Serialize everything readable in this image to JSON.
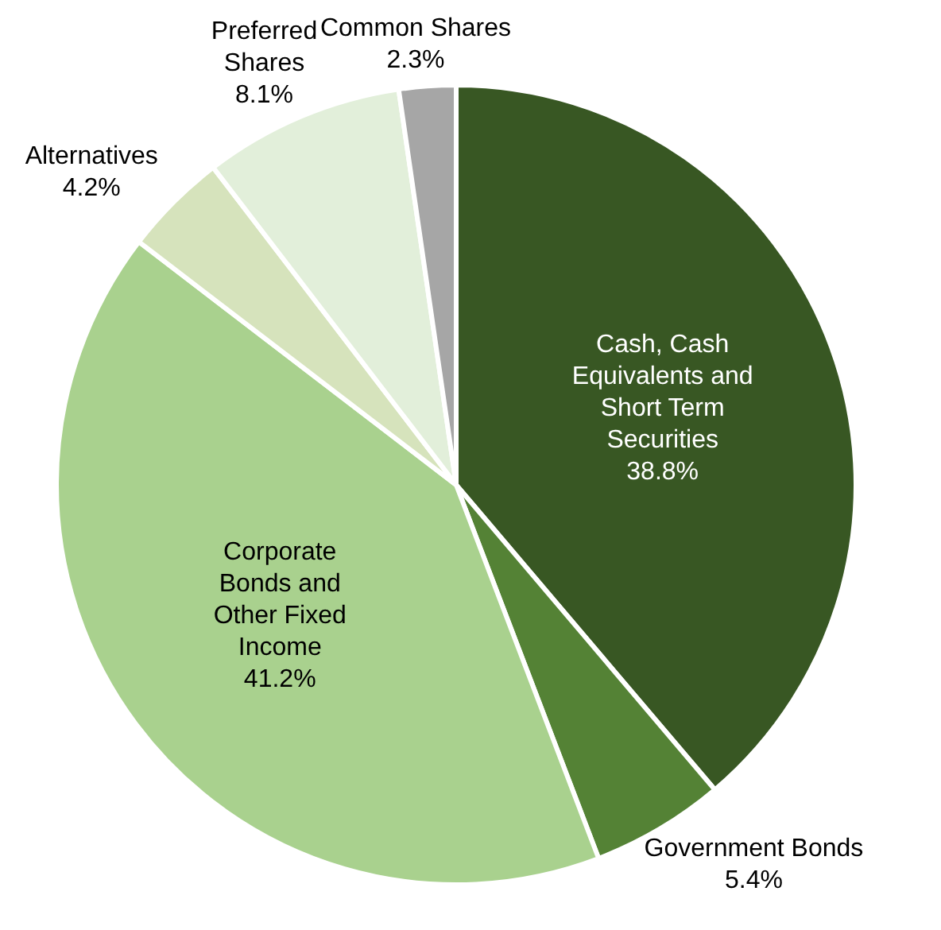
{
  "chart_data": {
    "type": "pie",
    "categories": [
      "Cash, Cash\nEquivalents and\nShort Term\nSecurities",
      "Government Bonds",
      "Corporate\nBonds and\nOther Fixed\nIncome",
      "Alternatives",
      "Preferred\nShares",
      "Common Shares"
    ],
    "values": [
      38.8,
      5.4,
      41.2,
      4.2,
      8.1,
      2.3
    ],
    "value_labels": [
      "38.8%",
      "5.4%",
      "41.2%",
      "4.2%",
      "8.1%",
      "2.3%"
    ],
    "colors": [
      "#385723",
      "#548235",
      "#a9d18e",
      "#d6e3bc",
      "#e2efda",
      "#a6a6a6"
    ],
    "legend": false
  }
}
